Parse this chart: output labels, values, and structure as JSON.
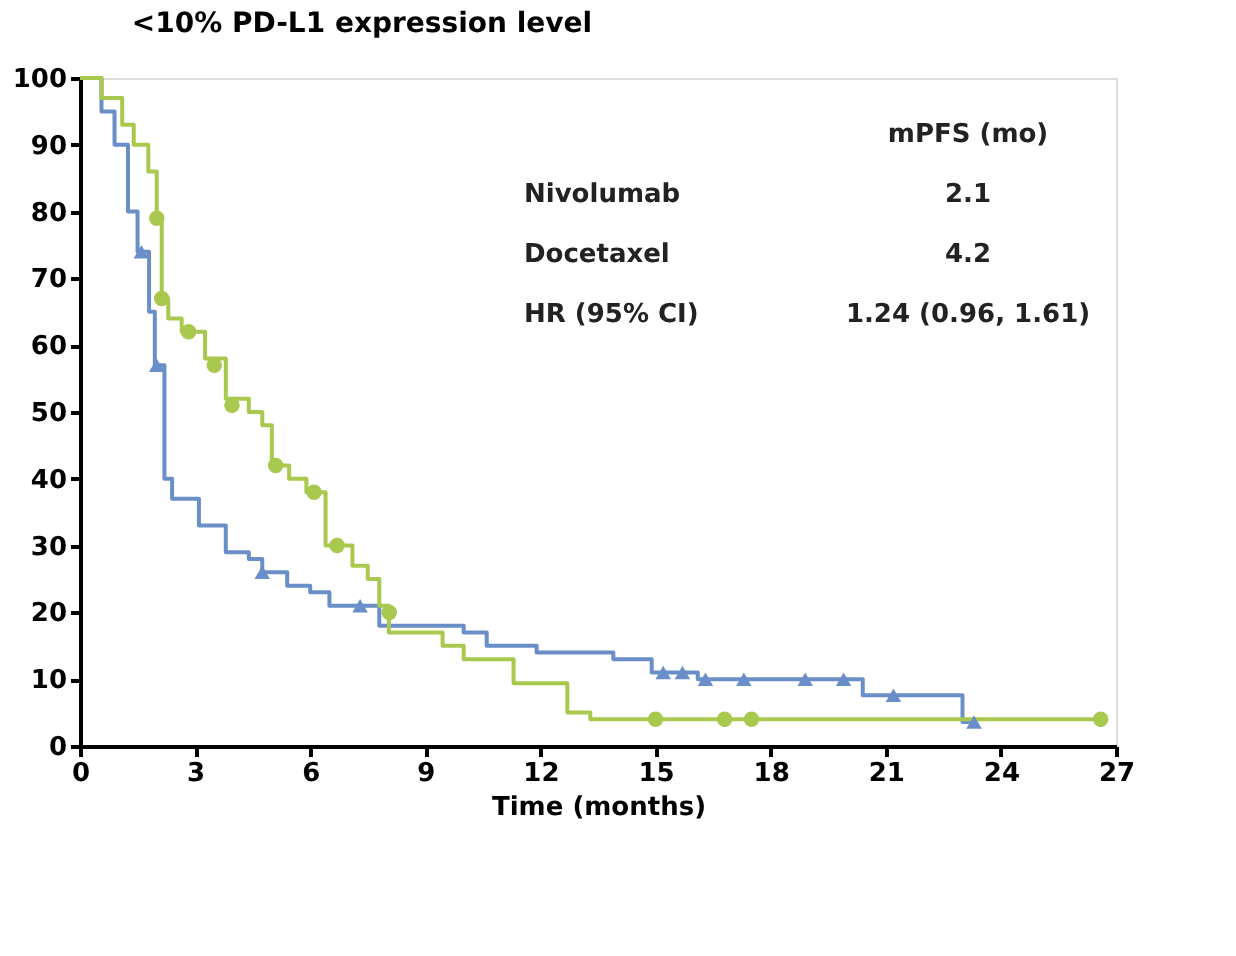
{
  "chart_data": {
    "type": "step",
    "title": "<10% PD-L1 expression level",
    "xlabel": "Time (months)",
    "xlim": [
      0,
      27
    ],
    "xticks": [
      0,
      3,
      6,
      9,
      12,
      15,
      18,
      21,
      24,
      27
    ],
    "ylim": [
      0,
      100
    ],
    "yticks": [
      0,
      10,
      20,
      30,
      40,
      50,
      60,
      70,
      80,
      90,
      100
    ],
    "grid": false,
    "line_style": "solid",
    "annotations": [
      "mPFS (mo)",
      "Nivolumab",
      "2.1",
      "Docetaxel",
      "4.2",
      "HR (95% CI)",
      "1.24 (0.96, 1.61)"
    ],
    "series": [
      {
        "color": "#6a8fc8",
        "x": [
          0,
          0.56,
          0.9,
          1.25,
          1.5,
          1.8,
          1.95,
          2.2,
          2.4,
          3.1,
          3.8,
          4.4,
          4.75,
          5.4,
          6.0,
          6.5,
          7.8,
          10.0,
          10.6,
          11.9,
          13.9,
          14.9,
          16.1,
          20.4,
          23.0,
          23.3
        ],
        "values": [
          100,
          95,
          90,
          80,
          74,
          65,
          57,
          40,
          37,
          33,
          29,
          28,
          26,
          24,
          23,
          21,
          18,
          17,
          15,
          14,
          13,
          11,
          10,
          7.6,
          3.6,
          3.6
        ]
      },
      {
        "color": "#a9c84e",
        "x": [
          0,
          0.56,
          1.1,
          1.4,
          1.78,
          2.0,
          2.13,
          2.3,
          2.65,
          3.26,
          3.8,
          4.4,
          4.75,
          5.0,
          5.45,
          5.9,
          6.4,
          7.1,
          7.5,
          7.8,
          8.05,
          9.45,
          10.0,
          11.3,
          12.7,
          13.3,
          26.6
        ],
        "values": [
          100,
          97,
          93,
          90,
          86,
          79,
          67,
          64,
          62,
          58,
          52,
          50,
          48,
          42,
          40,
          38,
          30,
          27,
          25,
          21,
          17,
          15,
          13,
          9.4,
          5,
          4,
          4
        ]
      },
      {
        "type": "scatter",
        "marker": "triangle",
        "color": "#6a8fc8",
        "x": [
          1.6,
          2.0,
          4.75,
          7.3,
          15.2,
          15.7,
          16.3,
          17.3,
          18.9,
          19.9,
          21.2,
          23.3
        ],
        "values": [
          74,
          57,
          26,
          21,
          11,
          11,
          10,
          10,
          10,
          10,
          7.6,
          3.6
        ]
      },
      {
        "type": "scatter",
        "marker": "circle",
        "color": "#a9c84e",
        "x": [
          2.0,
          2.13,
          2.83,
          3.5,
          3.96,
          5.1,
          6.1,
          6.7,
          8.06,
          15.0,
          16.8,
          17.5,
          26.6
        ],
        "values": [
          79,
          67,
          62,
          57,
          51,
          42,
          38,
          30,
          20,
          4,
          4,
          4,
          4
        ]
      }
    ]
  }
}
